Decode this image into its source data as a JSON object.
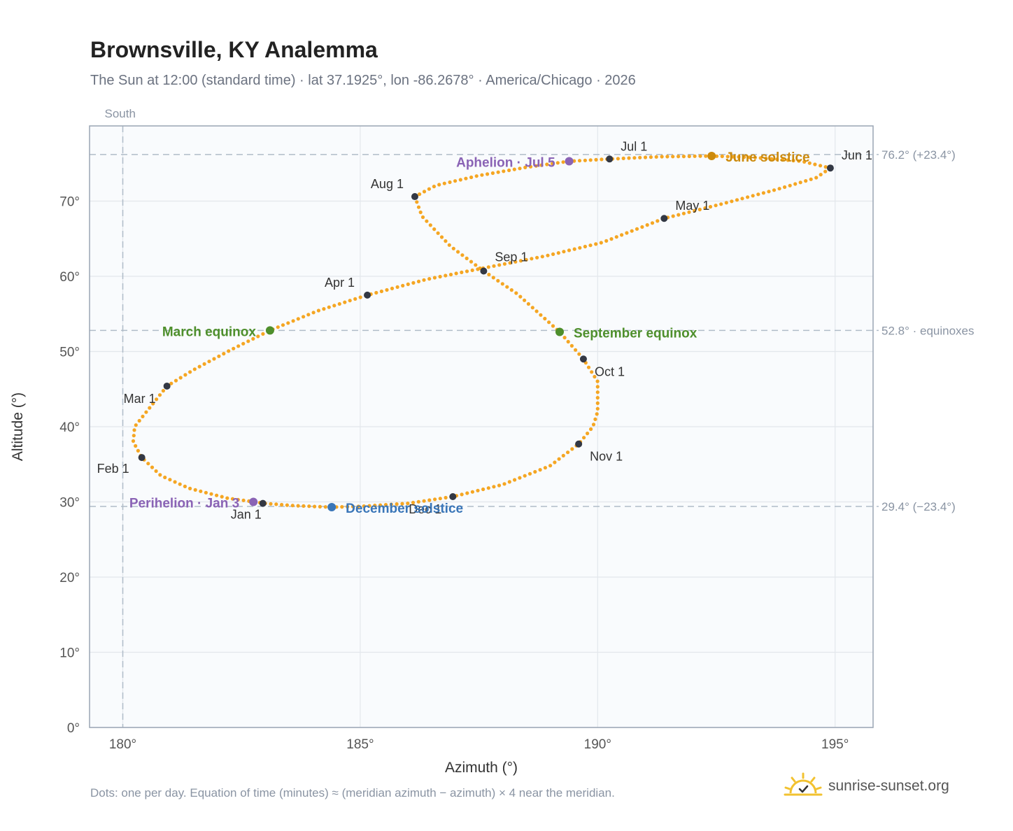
{
  "header": {
    "title": "Brownsville, KY Analemma",
    "subtitle": "The Sun at 12:00 (standard time) · lat 37.1925°, lon -86.2678° · America/Chicago · 2026"
  },
  "footer": {
    "note": "Dots: one per day. Equation of time (minutes) ≈ (meridian azimuth − azimuth) × 4 near the meridian.",
    "brand": "sunrise-sunset.org",
    "brand_icon": "sun-logo-icon"
  },
  "colors": {
    "curve": "#f5a623",
    "month_dot": "#333844",
    "equinox": "#4e8f2c",
    "june_solstice": "#cc8a0c",
    "december_solstice": "#3a76b8",
    "apsis": "#8a63b5",
    "grid": "#e3e7ec",
    "reference_line": "#b0bcc8",
    "plot_bg": "#f9fbfd",
    "frame": "#9aa5b4"
  },
  "chart_data": {
    "type": "scatter",
    "xlabel": "Azimuth (°)",
    "ylabel": "Altitude (°)",
    "xlim": [
      179.3,
      195.8
    ],
    "ylim": [
      0,
      80
    ],
    "xticks": [
      180,
      185,
      190,
      195
    ],
    "yticks": [
      0,
      10,
      20,
      30,
      40,
      50,
      60,
      70
    ],
    "x_tick_labels": [
      "180°",
      "185°",
      "190°",
      "195°"
    ],
    "y_tick_labels": [
      "0°",
      "10°",
      "20°",
      "30°",
      "40°",
      "50°",
      "60°",
      "70°"
    ],
    "grid": true,
    "south_marker": {
      "azimuth": 180,
      "label": "South"
    },
    "reference_lines": [
      {
        "altitude": 76.2,
        "label": "76.2° (+23.4°)"
      },
      {
        "altitude": 52.8,
        "label": "52.8° · equinoxes"
      },
      {
        "altitude": 29.4,
        "label": "29.4° (−23.4°)"
      }
    ],
    "analemma_path": [
      [
        183.0,
        29.8
      ],
      [
        182.2,
        30.5
      ],
      [
        181.4,
        31.8
      ],
      [
        180.8,
        33.5
      ],
      [
        180.4,
        35.9
      ],
      [
        180.22,
        38.0
      ],
      [
        180.25,
        40.0
      ],
      [
        180.5,
        42.0
      ],
      [
        180.93,
        45.4
      ],
      [
        181.5,
        47.6
      ],
      [
        182.3,
        50.3
      ],
      [
        183.1,
        52.8
      ],
      [
        184.1,
        55.4
      ],
      [
        185.15,
        57.5
      ],
      [
        186.4,
        59.6
      ],
      [
        187.6,
        61.1
      ],
      [
        188.9,
        62.7
      ],
      [
        190.1,
        64.5
      ],
      [
        191.4,
        67.7
      ],
      [
        192.6,
        69.6
      ],
      [
        193.8,
        71.6
      ],
      [
        194.6,
        73.1
      ],
      [
        194.9,
        74.4
      ],
      [
        194.3,
        75.3
      ],
      [
        193.3,
        75.8
      ],
      [
        192.4,
        76.0
      ],
      [
        191.3,
        75.9
      ],
      [
        190.25,
        75.6
      ],
      [
        189.4,
        75.3
      ],
      [
        188.5,
        74.5
      ],
      [
        187.5,
        73.4
      ],
      [
        186.6,
        72.1
      ],
      [
        186.15,
        70.6
      ],
      [
        186.3,
        68.0
      ],
      [
        186.9,
        64.0
      ],
      [
        187.6,
        60.7
      ],
      [
        188.3,
        57.7
      ],
      [
        189.2,
        52.6
      ],
      [
        189.7,
        49.0
      ],
      [
        190.0,
        46.0
      ],
      [
        190.0,
        42.0
      ],
      [
        189.9,
        40.0
      ],
      [
        189.6,
        37.7
      ],
      [
        189.0,
        34.8
      ],
      [
        188.0,
        32.3
      ],
      [
        186.95,
        30.7
      ],
      [
        186.0,
        29.8
      ],
      [
        185.0,
        29.4
      ],
      [
        184.4,
        29.3
      ],
      [
        183.6,
        29.5
      ],
      [
        183.0,
        29.8
      ]
    ],
    "month_points": [
      {
        "label": "Jan 1",
        "x": 182.95,
        "y": 29.8
      },
      {
        "label": "Feb 1",
        "x": 180.4,
        "y": 35.9
      },
      {
        "label": "Mar 1",
        "x": 180.93,
        "y": 45.4
      },
      {
        "label": "Apr 1",
        "x": 185.15,
        "y": 57.5
      },
      {
        "label": "May 1",
        "x": 191.4,
        "y": 67.7
      },
      {
        "label": "Jun 1",
        "x": 194.9,
        "y": 74.4
      },
      {
        "label": "Jul 1",
        "x": 190.25,
        "y": 75.6
      },
      {
        "label": "Aug 1",
        "x": 186.15,
        "y": 70.6
      },
      {
        "label": "Sep 1",
        "x": 187.6,
        "y": 60.7
      },
      {
        "label": "Oct 1",
        "x": 189.7,
        "y": 49.0
      },
      {
        "label": "Nov 1",
        "x": 189.6,
        "y": 37.7
      },
      {
        "label": "Dec 1",
        "x": 186.95,
        "y": 30.7
      }
    ],
    "events": [
      {
        "label": "March equinox",
        "x": 183.1,
        "y": 52.8,
        "color": "#4e8f2c",
        "anchor": "end"
      },
      {
        "label": "September equinox",
        "x": 189.2,
        "y": 52.6,
        "color": "#4e8f2c",
        "anchor": "start"
      },
      {
        "label": "June solstice",
        "x": 192.4,
        "y": 76.0,
        "color": "#cc8a0c",
        "anchor": "start"
      },
      {
        "label": "December solstice",
        "x": 184.4,
        "y": 29.3,
        "color": "#3a76b8",
        "anchor": "start"
      },
      {
        "label": "Aphelion · Jul 5",
        "x": 189.4,
        "y": 75.3,
        "color": "#8a63b5",
        "anchor": "end"
      },
      {
        "label": "Perihelion · Jan 3",
        "x": 182.75,
        "y": 30.0,
        "color": "#8a63b5",
        "anchor": "end"
      }
    ]
  }
}
